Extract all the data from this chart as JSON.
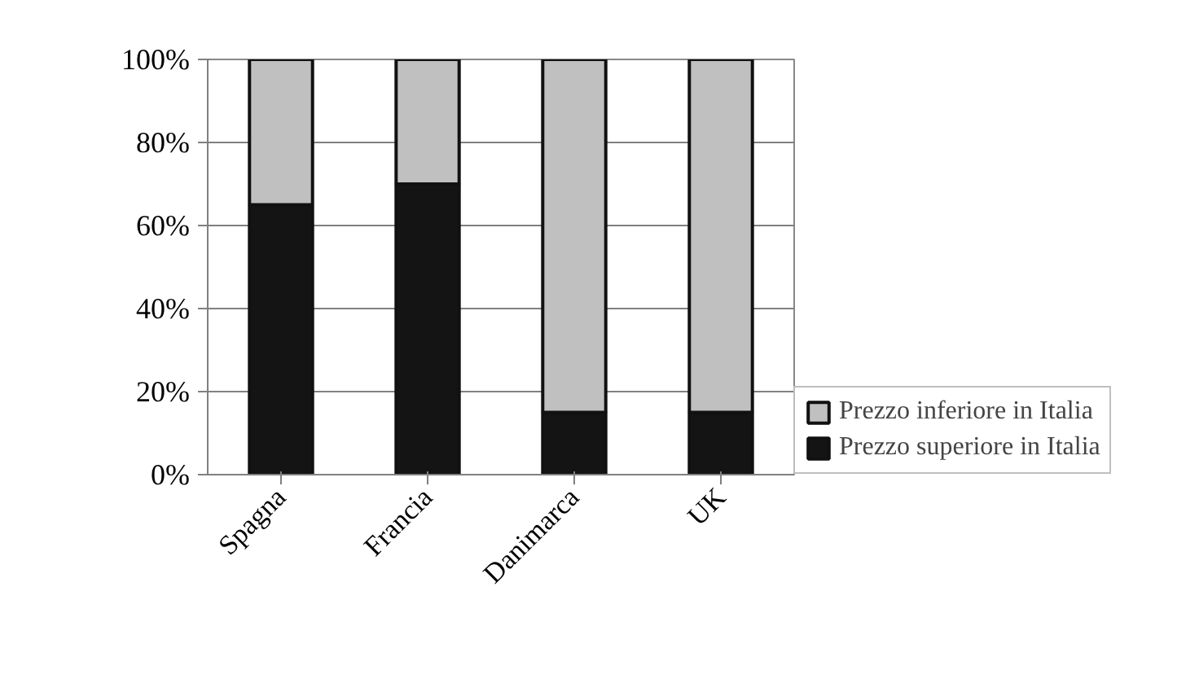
{
  "chart_data": {
    "type": "bar",
    "stacked": true,
    "categories": [
      "Spagna",
      "Francia",
      "Danimarca",
      "UK"
    ],
    "series": [
      {
        "name": "Prezzo superiore in Italia",
        "color": "#141414",
        "values": [
          65,
          70,
          15,
          15
        ]
      },
      {
        "name": "Prezzo inferiore in Italia",
        "color": "#c0c0c0",
        "values": [
          35,
          30,
          85,
          85
        ]
      }
    ],
    "ylim": [
      0,
      100
    ],
    "yticks": [
      {
        "value": 0,
        "label": "0%"
      },
      {
        "value": 20,
        "label": "20%"
      },
      {
        "value": 40,
        "label": "40%"
      },
      {
        "value": 60,
        "label": "60%"
      },
      {
        "value": 80,
        "label": "80%"
      },
      {
        "value": 100,
        "label": "100%"
      }
    ],
    "grid": "y",
    "legend": "bottom right"
  }
}
